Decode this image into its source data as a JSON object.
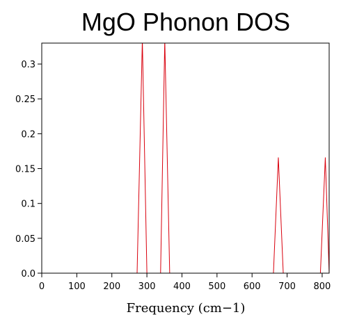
{
  "chart_data": {
    "type": "line",
    "title": "MgO Phonon DOS",
    "xlabel": "Frequency (cm−1)",
    "ylabel": "",
    "xlim": [
      0,
      820
    ],
    "ylim": [
      0,
      0.33
    ],
    "xticks": [
      0,
      100,
      200,
      300,
      400,
      500,
      600,
      700,
      800
    ],
    "yticks": [
      0.0,
      0.05,
      0.1,
      0.15,
      0.2,
      0.25,
      0.3
    ],
    "ytick_labels": [
      "0.0",
      "0.05",
      "0.1",
      "0.15",
      "0.2",
      "0.25",
      "0.3"
    ],
    "xtick_labels": [
      "0",
      "100",
      "200",
      "300",
      "400",
      "500",
      "600",
      "700",
      "800"
    ],
    "grid": false,
    "legend": "none",
    "series": [
      {
        "color": "#d9000d",
        "x": [
          272,
          287,
          300,
          339,
          351,
          365,
          661,
          675,
          689,
          795,
          809,
          820
        ],
        "y": [
          0,
          0.335,
          0,
          0,
          0.335,
          0,
          0,
          0.166,
          0,
          0,
          0.166,
          0
        ]
      }
    ]
  }
}
